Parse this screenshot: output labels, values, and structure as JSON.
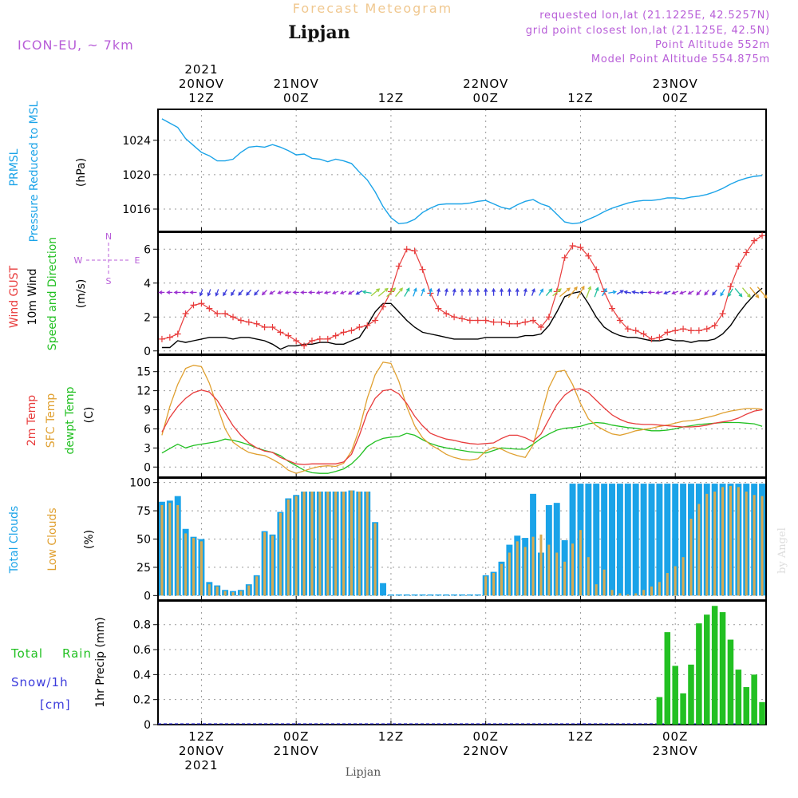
{
  "header": {
    "title_top": "Forecast Meteogram",
    "location": "Lipjan",
    "model": "ICON-EU, ~ 7km",
    "requested": "requested lon,lat (21.1225E, 42.5257N)",
    "grid_point": "grid point closest lon,lat (21.125E, 42.5N)",
    "point_alt": "Point Altitude 552m",
    "model_alt": "Model Point Altitude 554.875m",
    "footer_location": "Lipjan",
    "credit": "by Angel"
  },
  "time_axis": {
    "top_labels": [
      {
        "t": 5,
        "lines": [
          "2021",
          "20NOV",
          "12Z"
        ]
      },
      {
        "t": 17,
        "lines": [
          "21NOV",
          "00Z"
        ]
      },
      {
        "t": 29,
        "lines": [
          "12Z"
        ]
      },
      {
        "t": 41,
        "lines": [
          "22NOV",
          "00Z"
        ]
      },
      {
        "t": 53,
        "lines": [
          "12Z"
        ]
      },
      {
        "t": 65,
        "lines": [
          "23NOV",
          "00Z"
        ]
      }
    ],
    "bottom_labels": [
      {
        "t": 5,
        "lines": [
          "12Z",
          "20NOV",
          "2021"
        ]
      },
      {
        "t": 17,
        "lines": [
          "00Z",
          "21NOV"
        ]
      },
      {
        "t": 29,
        "lines": [
          "12Z"
        ]
      },
      {
        "t": 41,
        "lines": [
          "00Z",
          "22NOV"
        ]
      },
      {
        "t": 53,
        "lines": [
          "12Z"
        ]
      },
      {
        "t": 65,
        "lines": [
          "00Z",
          "23NOV"
        ]
      }
    ]
  },
  "colors": {
    "pressure": "#1aa3e8",
    "gust": "#e83c3c",
    "wind": "#000000",
    "direction": "#22c022",
    "t2m": "#e83c3c",
    "sfc": "#e0a030",
    "dewpt": "#22c022",
    "total_cloud": "#1aa3e8",
    "low_cloud": "#d8aa50",
    "rain": "#22c022",
    "snow": "#3b3bdc",
    "label_purple": "#b85ed8"
  },
  "chart_data": [
    {
      "type": "line",
      "title": "Pressure reduced to MSL",
      "ylabel": "(hPa)",
      "side_labels": [
        "PRMSL",
        "Pressure Reduced to MSL"
      ],
      "yticks": [
        1016,
        1020,
        1024
      ],
      "ylim": [
        1013.4,
        1027.6
      ],
      "x_hours_from_07Z_20NOV": [
        0,
        1,
        2,
        3,
        4,
        5,
        6,
        7,
        8,
        9,
        10,
        11,
        12,
        13,
        14,
        15,
        16,
        17,
        18,
        19,
        20,
        21,
        22,
        23,
        24,
        25,
        26,
        27,
        28,
        29,
        30,
        31,
        32,
        33,
        34,
        35,
        36,
        37,
        38,
        39,
        40,
        41,
        42,
        43,
        44,
        45,
        46,
        47,
        48,
        49,
        50,
        51,
        52,
        53,
        54,
        55,
        56,
        57,
        58,
        59,
        60,
        61,
        62,
        63,
        64,
        65,
        66,
        67,
        68,
        69,
        70,
        71,
        72,
        73,
        74,
        75,
        76
      ],
      "series": [
        {
          "name": "PRMSL",
          "values": [
            1026.5,
            1026.0,
            1025.5,
            1024.2,
            1023.4,
            1022.6,
            1022.2,
            1021.6,
            1021.6,
            1021.8,
            1022.6,
            1023.2,
            1023.3,
            1023.2,
            1023.5,
            1023.2,
            1022.8,
            1022.3,
            1022.4,
            1021.9,
            1021.8,
            1021.5,
            1021.8,
            1021.6,
            1021.3,
            1020.3,
            1019.4,
            1018.0,
            1016.3,
            1015.0,
            1014.3,
            1014.4,
            1014.8,
            1015.6,
            1016.1,
            1016.5,
            1016.6,
            1016.6,
            1016.6,
            1016.7,
            1016.9,
            1017.0,
            1016.6,
            1016.2,
            1016.0,
            1016.5,
            1016.9,
            1017.1,
            1016.6,
            1016.3,
            1015.4,
            1014.5,
            1014.3,
            1014.4,
            1014.8,
            1015.2,
            1015.7,
            1016.1,
            1016.4,
            1016.7,
            1016.9,
            1017.0,
            1017.0,
            1017.1,
            1017.3,
            1017.3,
            1017.2,
            1017.4,
            1017.5,
            1017.7,
            1018.0,
            1018.4,
            1018.9,
            1019.3,
            1019.6,
            1019.8,
            1019.9
          ]
        }
      ]
    },
    {
      "type": "line",
      "title": "Wind gust and 10m wind speed and direction",
      "ylabel": "(m/s)",
      "side_labels": [
        "Wind GUST",
        "10m Wind",
        "Speed and Direction"
      ],
      "compass": [
        "N",
        "S",
        "W",
        "E"
      ],
      "yticks": [
        0,
        2,
        4,
        6
      ],
      "ylim": [
        -0.2,
        7.0
      ],
      "series": [
        {
          "name": "Wind GUST",
          "values": [
            0.7,
            0.8,
            1.0,
            2.2,
            2.7,
            2.8,
            2.5,
            2.2,
            2.2,
            2.0,
            1.8,
            1.7,
            1.6,
            1.4,
            1.4,
            1.1,
            0.9,
            0.6,
            0.3,
            0.6,
            0.7,
            0.7,
            0.9,
            1.1,
            1.2,
            1.4,
            1.5,
            1.8,
            2.6,
            3.5,
            5.0,
            6.0,
            5.9,
            4.8,
            3.4,
            2.5,
            2.2,
            2.0,
            1.9,
            1.8,
            1.8,
            1.8,
            1.7,
            1.7,
            1.6,
            1.6,
            1.7,
            1.8,
            1.4,
            2.0,
            3.5,
            5.5,
            6.2,
            6.1,
            5.6,
            4.8,
            3.5,
            2.5,
            1.8,
            1.3,
            1.2,
            1.0,
            0.7,
            0.8,
            1.1,
            1.2,
            1.3,
            1.2,
            1.2,
            1.3,
            1.5,
            2.2,
            3.8,
            5.0,
            5.8,
            6.5,
            6.8
          ]
        },
        {
          "name": "10m Wind",
          "values": [
            0.2,
            0.2,
            0.6,
            0.5,
            0.6,
            0.7,
            0.8,
            0.8,
            0.8,
            0.7,
            0.8,
            0.8,
            0.7,
            0.6,
            0.4,
            0.1,
            0.3,
            0.3,
            0.4,
            0.4,
            0.5,
            0.5,
            0.4,
            0.4,
            0.6,
            0.8,
            1.5,
            2.3,
            2.8,
            2.8,
            2.3,
            1.8,
            1.4,
            1.1,
            1.0,
            0.9,
            0.8,
            0.7,
            0.7,
            0.7,
            0.7,
            0.8,
            0.8,
            0.8,
            0.8,
            0.8,
            0.9,
            0.9,
            1.0,
            1.5,
            2.3,
            3.2,
            3.4,
            3.5,
            2.8,
            2.0,
            1.4,
            1.1,
            0.9,
            0.8,
            0.8,
            0.7,
            0.6,
            0.6,
            0.7,
            0.6,
            0.6,
            0.5,
            0.6,
            0.6,
            0.7,
            1.0,
            1.5,
            2.2,
            2.8,
            3.3,
            3.7
          ]
        },
        {
          "name": "Direction (deg, from)",
          "values": [
            90,
            90,
            90,
            90,
            90,
            20,
            20,
            20,
            30,
            30,
            40,
            40,
            40,
            45,
            60,
            70,
            80,
            90,
            90,
            90,
            80,
            80,
            70,
            70,
            60,
            60,
            100,
            230,
            230,
            225,
            220,
            210,
            200,
            200,
            190,
            190,
            190,
            190,
            180,
            180,
            180,
            180,
            180,
            180,
            180,
            180,
            190,
            200,
            210,
            220,
            230,
            230,
            220,
            210,
            200,
            200,
            210,
            260,
            240,
            100,
            100,
            90,
            90,
            80,
            70,
            70,
            70,
            60,
            40,
            40,
            40,
            30,
            30,
            320,
            320,
            320,
            320
          ]
        }
      ]
    },
    {
      "type": "line",
      "title": "Temperatures",
      "ylabel": "(C)",
      "side_labels": [
        "2m Temp",
        "SFC Temp",
        "dewpt Temp"
      ],
      "yticks": [
        0,
        3,
        6,
        9,
        12,
        15
      ],
      "ylim": [
        -1.6,
        17.6
      ],
      "series": [
        {
          "name": "2m Temp",
          "values": [
            5.5,
            7.8,
            9.5,
            10.8,
            11.7,
            12.1,
            11.8,
            10.5,
            8.5,
            6.5,
            5.0,
            3.8,
            3.0,
            2.5,
            2.3,
            1.5,
            1.0,
            0.5,
            0.4,
            0.5,
            0.5,
            0.5,
            0.5,
            0.8,
            2.0,
            5.0,
            8.5,
            10.8,
            12.0,
            12.2,
            11.5,
            10.0,
            8.0,
            6.5,
            5.3,
            4.8,
            4.4,
            4.2,
            3.9,
            3.7,
            3.6,
            3.7,
            3.8,
            4.5,
            5.0,
            5.0,
            4.6,
            4.0,
            5.2,
            7.5,
            9.8,
            11.3,
            12.2,
            12.3,
            11.7,
            10.5,
            9.3,
            8.2,
            7.5,
            7.0,
            6.8,
            6.7,
            6.7,
            6.6,
            6.5,
            6.4,
            6.3,
            6.3,
            6.4,
            6.6,
            6.9,
            7.1,
            7.3,
            7.7,
            8.3,
            8.8,
            9.0
          ]
        },
        {
          "name": "SFC Temp",
          "values": [
            5.0,
            9.5,
            13.0,
            15.5,
            16.0,
            15.8,
            13.2,
            9.5,
            6.0,
            3.9,
            3.0,
            2.3,
            2.0,
            1.8,
            1.2,
            0.5,
            -0.5,
            -1.0,
            -0.6,
            -0.2,
            0.1,
            0.2,
            0.1,
            0.6,
            2.5,
            6.0,
            10.8,
            14.5,
            16.5,
            16.3,
            13.5,
            9.5,
            6.5,
            4.6,
            3.5,
            2.8,
            2.0,
            1.5,
            1.2,
            1.1,
            1.3,
            2.5,
            3.1,
            2.8,
            2.2,
            1.8,
            1.5,
            3.5,
            8.0,
            12.5,
            15.0,
            15.2,
            13.0,
            10.0,
            7.6,
            6.5,
            5.8,
            5.2,
            5.0,
            5.3,
            5.7,
            5.9,
            6.1,
            6.4,
            6.6,
            6.9,
            7.2,
            7.3,
            7.5,
            7.8,
            8.1,
            8.5,
            8.8,
            9.0,
            9.2,
            9.2,
            9.1
          ]
        },
        {
          "name": "dewpt Temp",
          "values": [
            2.2,
            2.9,
            3.6,
            3.0,
            3.4,
            3.6,
            3.8,
            4.0,
            4.4,
            4.2,
            3.9,
            3.5,
            3.0,
            2.6,
            2.3,
            1.8,
            0.9,
            0.2,
            -0.5,
            -0.9,
            -1.0,
            -1.0,
            -0.7,
            -0.3,
            0.5,
            1.7,
            3.2,
            4.0,
            4.5,
            4.7,
            4.8,
            5.3,
            5.0,
            4.3,
            3.7,
            3.3,
            3.0,
            2.8,
            2.6,
            2.4,
            2.3,
            2.2,
            2.6,
            3.0,
            2.9,
            2.8,
            2.8,
            3.6,
            4.5,
            5.2,
            5.8,
            6.1,
            6.2,
            6.4,
            6.8,
            7.0,
            6.9,
            6.6,
            6.4,
            6.2,
            6.1,
            5.9,
            5.7,
            5.7,
            5.8,
            6.0,
            6.3,
            6.5,
            6.7,
            6.8,
            6.9,
            7.0,
            7.0,
            7.0,
            6.9,
            6.8,
            6.4
          ]
        }
      ]
    },
    {
      "type": "bar",
      "title": "Cloud cover",
      "ylabel": "(%)",
      "side_labels": [
        "Total Clouds",
        "Low Clouds"
      ],
      "yticks": [
        0,
        25,
        50,
        75,
        100
      ],
      "ylim": [
        -4,
        104
      ],
      "series": [
        {
          "name": "Total Clouds",
          "values": [
            83,
            84,
            88,
            59,
            52,
            50,
            12,
            9,
            5,
            4,
            5,
            10,
            18,
            57,
            54,
            74,
            86,
            89,
            92,
            92,
            92,
            92,
            92,
            92,
            93,
            92,
            92,
            65,
            11,
            1,
            1,
            1,
            1,
            1,
            1,
            1,
            1,
            1,
            1,
            1,
            1,
            18,
            21,
            30,
            45,
            53,
            51,
            90,
            38,
            80,
            82,
            49,
            99,
            99,
            99,
            99,
            99,
            99,
            99,
            99,
            99,
            99,
            99,
            99,
            99,
            99,
            99,
            99,
            99,
            99,
            99,
            99,
            99,
            99,
            99,
            99,
            99
          ]
        },
        {
          "name": "Low Clouds",
          "values": [
            80,
            82,
            80,
            55,
            51,
            48,
            10,
            8,
            4,
            3,
            4,
            9,
            17,
            56,
            53,
            73,
            85,
            88,
            92,
            92,
            92,
            92,
            92,
            92,
            93,
            92,
            92,
            64,
            0,
            0,
            0,
            0,
            0,
            0,
            0,
            0,
            0,
            0,
            0,
            0,
            0,
            17,
            20,
            28,
            38,
            48,
            43,
            52,
            54,
            45,
            38,
            30,
            46,
            58,
            34,
            10,
            23,
            5,
            2,
            1,
            2,
            5,
            8,
            12,
            20,
            26,
            34,
            68,
            81,
            90,
            92,
            96,
            97,
            96,
            92,
            89,
            88
          ]
        }
      ]
    },
    {
      "type": "bar",
      "title": "1hr Precip (mm)",
      "ylabel": "1hr Precip (mm)",
      "side_labels": [
        "Total",
        "Rain",
        "Snow/1h",
        "[cm]"
      ],
      "yticks": [
        0,
        0.2,
        0.4,
        0.6,
        0.8
      ],
      "ylim": [
        0,
        0.99
      ],
      "series": [
        {
          "name": "Total Rain",
          "values": [
            0,
            0,
            0,
            0,
            0,
            0,
            0,
            0,
            0,
            0,
            0,
            0,
            0,
            0,
            0,
            0,
            0,
            0,
            0,
            0,
            0,
            0,
            0,
            0,
            0,
            0,
            0,
            0,
            0,
            0,
            0,
            0,
            0,
            0,
            0,
            0,
            0,
            0,
            0,
            0,
            0,
            0,
            0,
            0,
            0,
            0,
            0,
            0,
            0,
            0,
            0,
            0,
            0,
            0,
            0,
            0,
            0,
            0,
            0,
            0,
            0,
            0,
            0,
            0.22,
            0.74,
            0.47,
            0.25,
            0.48,
            0.81,
            0.88,
            0.95,
            0.9,
            0.68,
            0.44,
            0.3,
            0.4,
            0.18
          ]
        },
        {
          "name": "Snow/1h",
          "values": [
            0,
            0,
            0,
            0,
            0,
            0,
            0,
            0,
            0,
            0,
            0,
            0,
            0,
            0,
            0,
            0,
            0,
            0,
            0,
            0,
            0,
            0,
            0,
            0,
            0,
            0,
            0,
            0,
            0,
            0,
            0,
            0,
            0,
            0,
            0,
            0,
            0,
            0,
            0,
            0,
            0,
            0,
            0,
            0,
            0,
            0,
            0,
            0,
            0,
            0,
            0,
            0,
            0,
            0,
            0,
            0,
            0,
            0,
            0,
            0,
            0,
            0,
            0,
            0,
            0,
            0,
            0,
            0,
            0,
            0,
            0,
            0,
            0,
            0,
            0,
            0,
            0
          ]
        }
      ]
    }
  ]
}
